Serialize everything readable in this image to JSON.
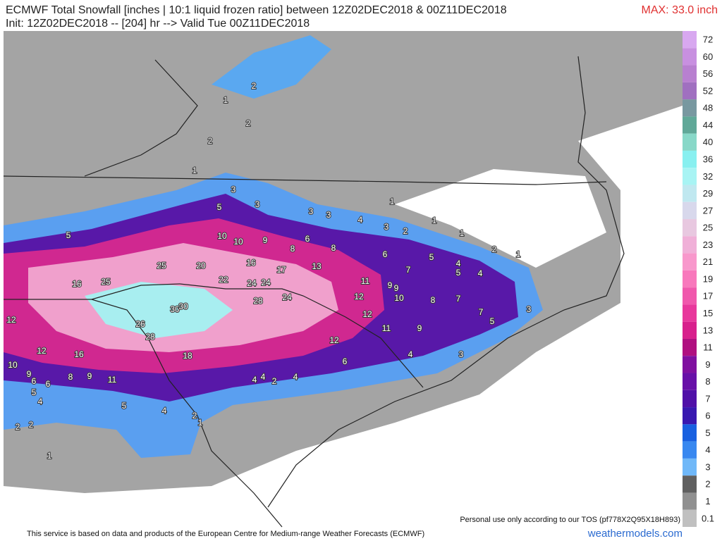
{
  "header": {
    "title_line1": "ECMWF Total Snowfall [inches | 10:1 liquid frozen ratio] between 12Z02DEC2018 & 00Z11DEC2018",
    "title_line2": "Init: 12Z02DEC2018 -- [204] hr --> Valid Tue 00Z11DEC2018",
    "max_label": "MAX: 33.0 inch"
  },
  "colorbar": {
    "levels": [
      72,
      60,
      56,
      52,
      48,
      44,
      40,
      36,
      32,
      29,
      27,
      25,
      23,
      21,
      19,
      17,
      15,
      13,
      11,
      9,
      8,
      7,
      6,
      5,
      4,
      3,
      2,
      1,
      0.1
    ],
    "colors": [
      "#d8a8f0",
      "#c890e0",
      "#b880d0",
      "#a070c0",
      "#7898a0",
      "#60a898",
      "#88d8c8",
      "#88f0f0",
      "#a8f4f4",
      "#c0e8f0",
      "#d8d8ec",
      "#e8c8e0",
      "#f0b0d8",
      "#f898cc",
      "#f878bc",
      "#f058ac",
      "#e8389c",
      "#d8208c",
      "#b01080",
      "#8010a0",
      "#6810a8",
      "#5010a8",
      "#3818b0",
      "#1860e0",
      "#3888f0",
      "#70b8f8",
      "#606060",
      "#909090",
      "#c0c0c0"
    ]
  },
  "map_labels": [
    1,
    2,
    2,
    2,
    1,
    3,
    3,
    5,
    3,
    3,
    4,
    3,
    2,
    1,
    1,
    1,
    2,
    1,
    5,
    10,
    10,
    9,
    6,
    8,
    8,
    6,
    5,
    7,
    4,
    5,
    4,
    25,
    20,
    16,
    17,
    13,
    16,
    25,
    22,
    24,
    24,
    11,
    9,
    9,
    28,
    24,
    12,
    10,
    8,
    7,
    7,
    3,
    5,
    12,
    30,
    30,
    12,
    26,
    28,
    11,
    9,
    12,
    16,
    18,
    12,
    3,
    4,
    6,
    10,
    9,
    6,
    6,
    8,
    9,
    11,
    4,
    4,
    2,
    4,
    5,
    4,
    5,
    4,
    2,
    1,
    2,
    2,
    1
  ],
  "notices": {
    "tos": "Personal use only according to our TOS (pf778X2Q95X18H893)",
    "source": "This service is based on data and products of the European Centre for Medium-range Weather Forecasts (ECMWF)",
    "site": "weathermodels.com"
  }
}
